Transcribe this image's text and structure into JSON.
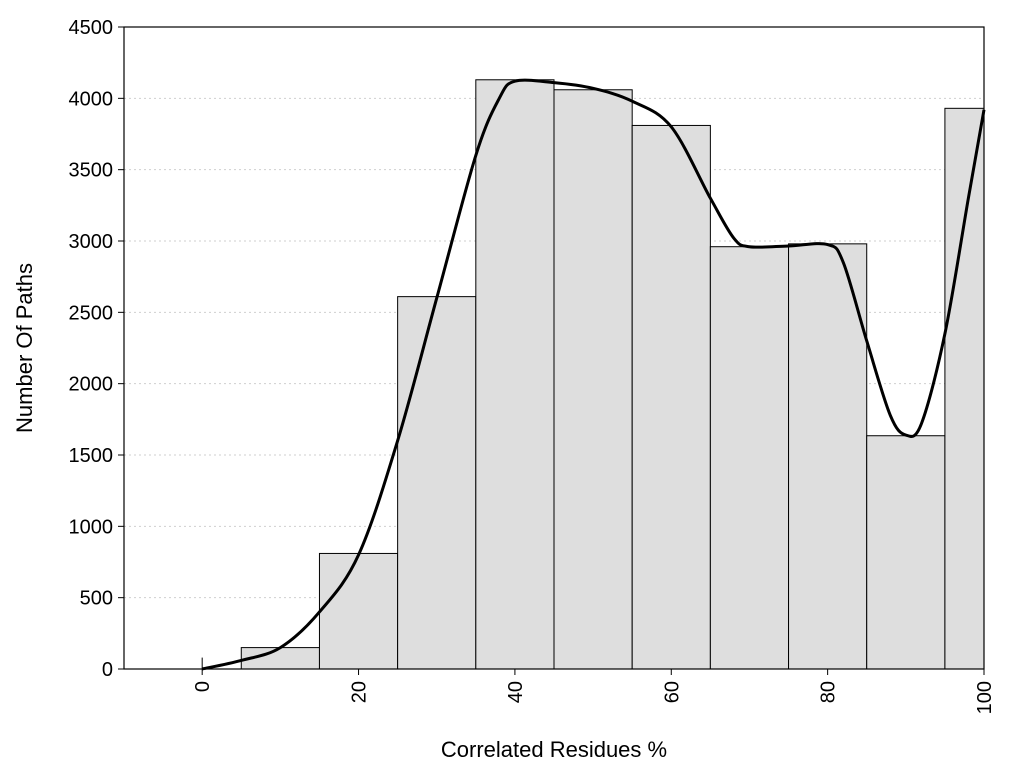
{
  "chart_data": {
    "type": "bar",
    "title": "",
    "xlabel": "Correlated Residues %",
    "ylabel": "Number Of Paths",
    "bin_centers": [
      0,
      10,
      20,
      30,
      40,
      50,
      60,
      70,
      80,
      90,
      100
    ],
    "bin_width": 10,
    "values": [
      80,
      150,
      810,
      2610,
      4130,
      4060,
      3810,
      2960,
      2980,
      1635,
      3930
    ],
    "xlim": [
      -10,
      100
    ],
    "ylim": [
      0,
      4500
    ],
    "x_ticks": [
      "0",
      "20",
      "40",
      "60",
      "80",
      "100"
    ],
    "x_tick_values": [
      0,
      20,
      40,
      60,
      80,
      100
    ],
    "y_ticks": [
      "0",
      "500",
      "1000",
      "1500",
      "2000",
      "2500",
      "3000",
      "3500",
      "4000",
      "4500"
    ],
    "y_tick_values": [
      0,
      500,
      1000,
      1500,
      2000,
      2500,
      3000,
      3500,
      4000,
      4500
    ],
    "grid": "horizontal dotted",
    "smooth_curve": {
      "x": [
        0,
        5,
        10,
        15,
        20,
        25,
        30,
        35,
        38,
        40,
        45,
        50,
        55,
        60,
        65,
        68,
        70,
        75,
        80,
        82,
        85,
        88,
        90,
        92,
        95,
        98,
        100
      ],
      "y": [
        0,
        60,
        150,
        400,
        800,
        1600,
        2600,
        3600,
        4000,
        4120,
        4110,
        4070,
        3980,
        3800,
        3300,
        3020,
        2960,
        2965,
        2975,
        2850,
        2300,
        1780,
        1640,
        1720,
        2350,
        3300,
        3920
      ]
    }
  }
}
